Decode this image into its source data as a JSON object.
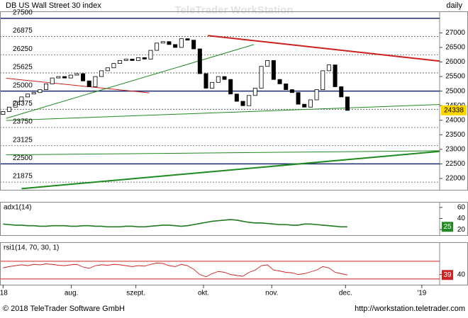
{
  "header": {
    "title": "DB US Wall Street 30 index",
    "watermark": "TeleTrader WorkStation",
    "period": "daily"
  },
  "footer": {
    "copyright": "© 2018 TeleTrader Software GmbH",
    "url": "http://workstation.teletrader.com"
  },
  "chart_data": [
    {
      "type": "candlestick",
      "up_color": "#ffffff",
      "down_color": "#000000",
      "open": [
        24200,
        24300,
        24450,
        24650,
        24800,
        24900,
        24950,
        25050,
        25250,
        25450,
        25500,
        25450,
        25550,
        25600,
        25350,
        25150,
        25500,
        25700,
        25800,
        25950,
        26050,
        26100,
        26050,
        26150,
        26100,
        26400,
        26650,
        26700,
        26600,
        26500,
        26800,
        26750,
        26450,
        25600,
        25100,
        25300,
        25500,
        25400,
        24900,
        24650,
        24500,
        24850,
        25100,
        25850,
        26050,
        25400,
        25250,
        25050,
        24950,
        24550,
        24450,
        24700,
        25050,
        25700,
        25900,
        25150,
        24800
      ],
      "close": [
        24300,
        24450,
        24650,
        24800,
        24900,
        24950,
        25050,
        25250,
        25450,
        25500,
        25450,
        25550,
        25600,
        25350,
        25150,
        25500,
        25700,
        25800,
        25950,
        26050,
        26100,
        26050,
        26150,
        26100,
        26400,
        26650,
        26700,
        26600,
        26500,
        26800,
        26750,
        26450,
        25600,
        25100,
        25300,
        25500,
        25400,
        24900,
        24650,
        24500,
        24850,
        25100,
        25850,
        26050,
        25400,
        25250,
        25050,
        24950,
        24550,
        24450,
        24700,
        25050,
        25700,
        25900,
        25150,
        24800,
        24338
      ],
      "xlim": [
        -0.5,
        71
      ],
      "xticks": [
        {
          "value": 0,
          "label": "'18"
        },
        {
          "value": 11.1,
          "label": "aug."
        },
        {
          "value": 21.6,
          "label": "szept."
        },
        {
          "value": 32.6,
          "label": "okt."
        },
        {
          "value": 43.7,
          "label": "nov."
        },
        {
          "value": 55.7,
          "label": "dec."
        },
        {
          "value": 68.1,
          "label": "'19"
        }
      ],
      "ylim": [
        21610,
        27740
      ],
      "yticks": [
        27500,
        26875,
        26250,
        25625,
        25000,
        24375,
        23750,
        23125,
        22500,
        21875
      ],
      "y2lim": [
        21610,
        27740
      ],
      "y2ticks": [
        27000,
        26500,
        26000,
        25500,
        25000,
        24500,
        24000,
        23500,
        23000,
        22500,
        22000
      ],
      "grid": true,
      "trendlines": [
        {
          "color": "#cc1f1f",
          "x": [
            33.3,
            71.0
          ],
          "y": [
            26908,
            26030
          ]
        },
        {
          "color": "#cc1f1f",
          "x": [
            0.5,
            23.8
          ],
          "y": [
            25440,
            24940
          ]
        },
        {
          "color": "#1f8a1f",
          "x": [
            0.5,
            40.8
          ],
          "y": [
            24064,
            26600
          ]
        },
        {
          "color": "#1f8a1f",
          "x": [
            0.5,
            71.0
          ],
          "y": [
            23990,
            24540
          ]
        },
        {
          "color": "#1f8a1f",
          "x": [
            0.5,
            71.0
          ],
          "y": [
            22810,
            22950
          ]
        },
        {
          "color": "#1f8a1f",
          "x": [
            3.0,
            71.0
          ],
          "y": [
            21650,
            22930
          ]
        }
      ]
    },
    {
      "type": "line",
      "title": "adx1(14)",
      "color": "#1f7a1f",
      "label_color": "#1f8a1f",
      "values": [
        30,
        29,
        28,
        28,
        27,
        27,
        26,
        26,
        27,
        27,
        27,
        26,
        26,
        27,
        27,
        26,
        26,
        25,
        25,
        25,
        26,
        26,
        25,
        25,
        26,
        27,
        28,
        28,
        27,
        26,
        27,
        29,
        31,
        33,
        35,
        36,
        37,
        38,
        37,
        35,
        33,
        32,
        32,
        31,
        30,
        29,
        29,
        28,
        28,
        30,
        30,
        29,
        28,
        27,
        26,
        25,
        25
      ],
      "ylim": [
        10,
        70
      ],
      "yticks": [
        60,
        40,
        20
      ]
    },
    {
      "type": "line",
      "title": "rsi1(14, 70, 30, 1)",
      "color": "#cc2222",
      "label_color": "#cc2222",
      "values": [
        55,
        58,
        60,
        62,
        60,
        63,
        62,
        64,
        63,
        61,
        60,
        62,
        63,
        57,
        54,
        60,
        62,
        61,
        63,
        62,
        60,
        58,
        60,
        59,
        63,
        66,
        65,
        60,
        58,
        63,
        60,
        52,
        40,
        35,
        42,
        47,
        45,
        40,
        38,
        36,
        45,
        50,
        60,
        62,
        50,
        48,
        45,
        44,
        40,
        42,
        46,
        50,
        58,
        55,
        45,
        42,
        39
      ],
      "levels": [
        70,
        30
      ],
      "ylim": [
        17,
        113
      ],
      "yticks": [
        40
      ]
    }
  ]
}
